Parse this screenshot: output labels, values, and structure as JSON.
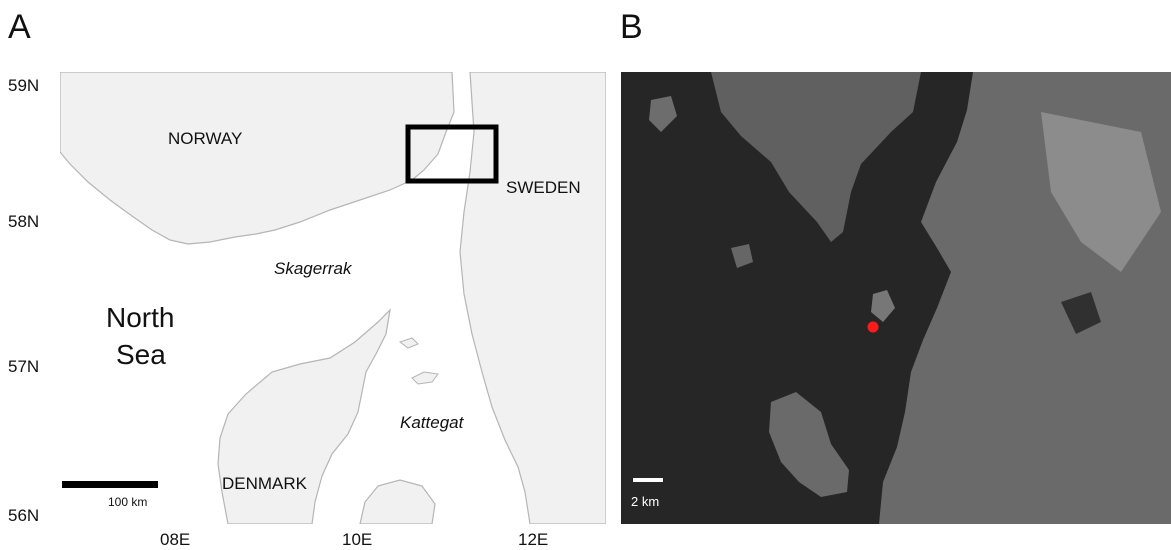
{
  "panel_a": {
    "letter": "A",
    "lat_labels": [
      "59N",
      "58N",
      "57N",
      "56N"
    ],
    "lon_labels": [
      "08E",
      "10E",
      "12E"
    ],
    "country_labels": {
      "norway": "NORWAY",
      "sweden": "SWEDEN",
      "denmark": "DENMARK"
    },
    "sea_labels": {
      "north_sea_line1": "North",
      "north_sea_line2": "Sea",
      "skagerrak": "Skagerrak",
      "kattegat": "Kattegat"
    },
    "scale_label": "100 km",
    "colors": {
      "land": "#f1f1f1",
      "water": "#ffffff",
      "coast": "#b5b5b5",
      "box": "#000000"
    }
  },
  "panel_b": {
    "letter": "B",
    "scale_label": "2 km",
    "colors": {
      "water": "#262626",
      "land": "#707070",
      "site_marker": "#ff1a1a"
    }
  }
}
